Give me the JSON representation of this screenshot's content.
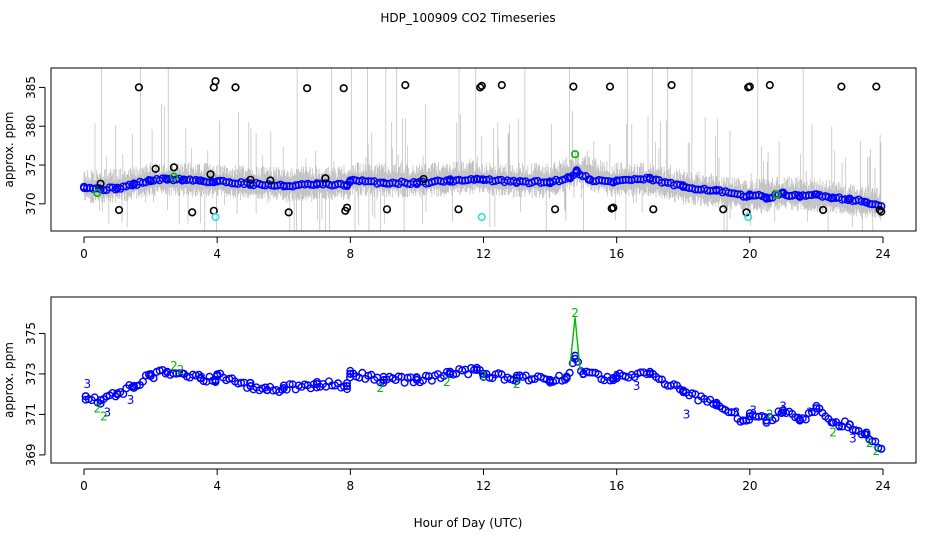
{
  "title": "HDP_100909  CO2 Timeseries",
  "xlabel": "Hour of Day (UTC)",
  "colors": {
    "raw_range": "#bbbbbb",
    "black_points": "#000000",
    "blue_points": "#0000ff",
    "green_points": "#00bb00",
    "cyan_points": "#33dddd",
    "frame": "#000000"
  },
  "chart_data": [
    {
      "type": "scatter",
      "ylabel": "approx. ppm",
      "xlim": [
        0,
        24
      ],
      "ylim": [
        366.5,
        387.5
      ],
      "xticks": [
        0,
        4,
        8,
        12,
        16,
        20,
        24
      ],
      "yticks": [
        370,
        375,
        380,
        385
      ],
      "series": [
        {
          "key": "raw_range",
          "style": "vertical-gray-bars",
          "x_range": [
            0,
            23.95
          ],
          "base_bands": [
            [
              0.0,
              372.0
            ],
            [
              1.0,
              372.2
            ],
            [
              2.0,
              373.0
            ],
            [
              3.0,
              373.0
            ],
            [
              4.0,
              372.8
            ],
            [
              5.0,
              372.5
            ],
            [
              6.0,
              372.4
            ],
            [
              7.0,
              372.5
            ],
            [
              7.9,
              372.4
            ],
            [
              8.0,
              373.0
            ],
            [
              10.0,
              372.8
            ],
            [
              11.8,
              373.3
            ],
            [
              12.0,
              373.0
            ],
            [
              14.0,
              372.8
            ],
            [
              14.8,
              374.2
            ],
            [
              15.9,
              372.9
            ],
            [
              16.0,
              373.0
            ],
            [
              17.0,
              373.0
            ],
            [
              18.0,
              372.0
            ],
            [
              19.0,
              371.6
            ],
            [
              20.0,
              370.8
            ],
            [
              21.0,
              371.2
            ],
            [
              22.0,
              371.0
            ],
            [
              23.0,
              370.3
            ],
            [
              23.9,
              369.8
            ]
          ]
        },
        {
          "key": "blue_points",
          "style": "open-circle",
          "x": [
            0.0,
            0.5,
            1.0,
            1.5,
            2.0,
            2.5,
            3.0,
            3.5,
            3.9,
            4.0,
            5.0,
            6.0,
            7.0,
            7.9,
            8.0,
            9.0,
            10.0,
            11.0,
            11.8,
            12.0,
            13.0,
            14.0,
            14.6,
            14.8,
            15.2,
            15.9,
            16.0,
            17.0,
            18.0,
            19.0,
            19.9,
            20.0,
            20.5,
            21.0,
            21.5,
            22.0,
            22.5,
            23.0,
            23.5,
            23.95
          ],
          "y": [
            372.2,
            371.9,
            372.0,
            372.5,
            373.0,
            373.2,
            373.1,
            373.0,
            372.8,
            372.9,
            372.6,
            372.3,
            372.5,
            372.4,
            373.0,
            372.7,
            372.7,
            373.0,
            373.2,
            373.1,
            372.8,
            372.8,
            373.4,
            374.2,
            373.1,
            372.8,
            373.0,
            373.2,
            372.2,
            371.7,
            370.9,
            371.2,
            370.8,
            371.3,
            370.9,
            371.2,
            370.8,
            370.6,
            370.2,
            369.7
          ]
        },
        {
          "key": "black_points",
          "style": "open-circle",
          "x": [
            0.5,
            1.05,
            1.65,
            2.15,
            2.7,
            3.25,
            3.8,
            3.9,
            3.95,
            3.9,
            4.55,
            5.0,
            5.6,
            6.15,
            6.7,
            7.25,
            7.8,
            7.85,
            7.9,
            9.1,
            9.65,
            10.2,
            11.25,
            11.9,
            11.95,
            12.55,
            14.15,
            14.7,
            15.8,
            15.85,
            15.9,
            17.1,
            17.65,
            19.2,
            19.9,
            19.95,
            20.0,
            20.6,
            22.2,
            22.75,
            23.8,
            23.9,
            23.95
          ],
          "y": [
            372.6,
            369.2,
            385.0,
            374.5,
            374.7,
            368.9,
            373.8,
            385.0,
            385.8,
            369.1,
            385.0,
            373.1,
            373.0,
            368.9,
            384.9,
            373.3,
            384.9,
            369.1,
            369.5,
            369.3,
            385.3,
            373.2,
            369.3,
            385.0,
            385.2,
            385.3,
            369.3,
            385.1,
            385.1,
            369.4,
            369.5,
            369.3,
            385.3,
            369.3,
            368.9,
            385.0,
            385.1,
            385.3,
            369.2,
            385.1,
            385.1,
            369.2,
            369.0
          ]
        },
        {
          "key": "green_points",
          "style": "open-circle",
          "x": [
            0.4,
            2.7,
            14.75,
            20.8
          ],
          "y": [
            371.4,
            373.5,
            376.4,
            371.2
          ]
        },
        {
          "key": "cyan_points",
          "style": "open-circle",
          "x": [
            3.95,
            11.95,
            19.95
          ],
          "y": [
            368.3,
            368.3,
            368.3
          ]
        }
      ]
    },
    {
      "type": "scatter",
      "ylabel": "approx. ppm",
      "xlim": [
        0,
        24
      ],
      "ylim": [
        368.6,
        376.8
      ],
      "xticks": [
        0,
        4,
        8,
        12,
        16,
        20,
        24
      ],
      "yticks": [
        369,
        371,
        373,
        375
      ],
      "series": [
        {
          "key": "blue_points",
          "style": "open-circle",
          "x": [
            0.05,
            0.5,
            1.0,
            1.5,
            2.0,
            2.5,
            3.0,
            3.5,
            3.95,
            4.0,
            5.0,
            5.5,
            6.0,
            7.0,
            7.9,
            8.0,
            9.0,
            10.0,
            11.0,
            11.8,
            12.0,
            13.0,
            14.0,
            14.5,
            14.75,
            15.0,
            15.9,
            16.0,
            17.0,
            18.0,
            19.0,
            19.8,
            20.0,
            20.5,
            21.0,
            21.5,
            22.0,
            22.5,
            23.0,
            23.5,
            23.95
          ],
          "y": [
            371.9,
            371.7,
            372.0,
            372.4,
            372.9,
            373.1,
            373.0,
            372.8,
            372.7,
            372.9,
            372.4,
            372.2,
            372.3,
            372.5,
            372.4,
            373.0,
            372.7,
            372.7,
            373.0,
            373.2,
            373.0,
            372.8,
            372.7,
            372.8,
            373.9,
            373.0,
            372.8,
            372.9,
            373.1,
            372.1,
            371.5,
            370.7,
            370.9,
            370.7,
            371.2,
            370.7,
            371.3,
            370.6,
            370.5,
            370.0,
            369.3
          ]
        },
        {
          "key": "green_points",
          "style": "label-2",
          "x": [
            0.4,
            0.6,
            2.7,
            2.9,
            8.9,
            10.9,
            12.0,
            13.0,
            14.75,
            20.6,
            22.5,
            23.6,
            23.8
          ],
          "y": [
            371.3,
            370.9,
            373.4,
            373.2,
            372.3,
            372.6,
            372.9,
            372.5,
            376.0,
            371.0,
            370.1,
            369.6,
            369.2
          ]
        },
        {
          "key": "blue_labels",
          "style": "label-3",
          "x": [
            0.1,
            0.7,
            1.4,
            3.55,
            15.0,
            16.0,
            16.6,
            18.1,
            19.6,
            20.1,
            21.0,
            21.8,
            22.7,
            23.1
          ],
          "y": [
            372.5,
            371.1,
            371.7,
            372.8,
            373.0,
            372.9,
            372.4,
            371.0,
            371.1,
            371.2,
            371.4,
            371.1,
            370.4,
            369.8
          ]
        }
      ]
    }
  ]
}
